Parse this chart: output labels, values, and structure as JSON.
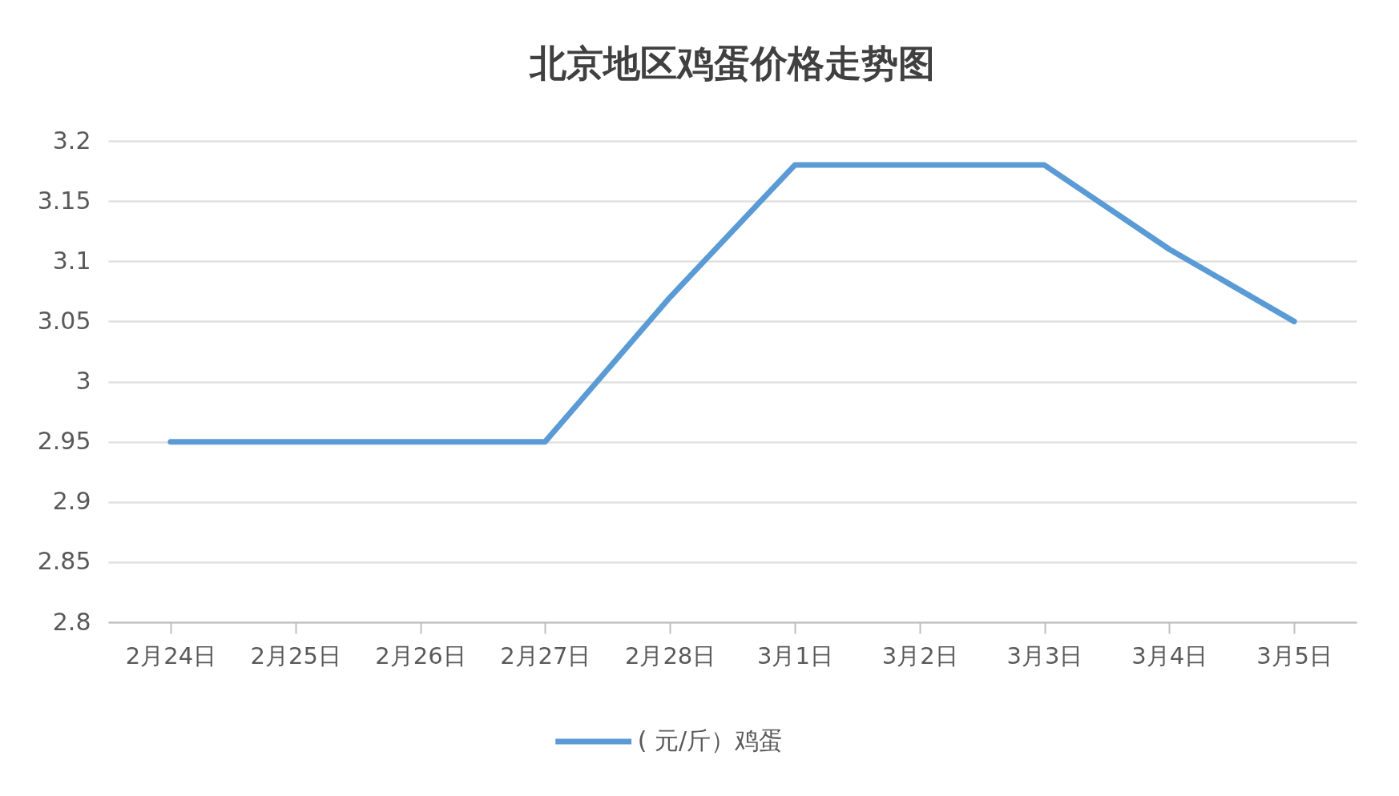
{
  "chart_data": {
    "type": "line",
    "title": "北京地区鸡蛋价格走势图",
    "categories": [
      "2月24日",
      "2月25日",
      "2月26日",
      "2月27日",
      "2月28日",
      "3月1日",
      "3月2日",
      "3月3日",
      "3月4日",
      "3月5日"
    ],
    "series": [
      {
        "name": "( 元/斤）鸡蛋",
        "color": "#5b9bd5",
        "values": [
          2.95,
          2.95,
          2.95,
          2.95,
          3.07,
          3.18,
          3.18,
          3.18,
          3.11,
          3.05
        ]
      }
    ],
    "ylim": [
      2.8,
      3.2
    ],
    "yticks": [
      2.8,
      2.85,
      2.9,
      2.95,
      3,
      3.05,
      3.1,
      3.15,
      3.2
    ],
    "grid": "y",
    "legend": "bottom",
    "marker": "none",
    "line_style": "solid"
  }
}
